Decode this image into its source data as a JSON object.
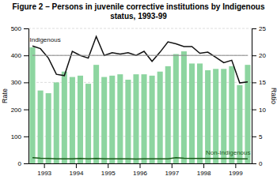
{
  "chart_data": {
    "type": "bar",
    "title": "Figure 2 – Persons in juvenile corrective institutions by Indigenous status, 1993-99",
    "categories": [
      null,
      "1993",
      null,
      null,
      null,
      "1994",
      null,
      null,
      null,
      "1995",
      null,
      null,
      null,
      "1996",
      null,
      null,
      null,
      "1997",
      null,
      null,
      null,
      "1998",
      null,
      null,
      null,
      "1999",
      null,
      null
    ],
    "series": [
      {
        "type": "bar",
        "color": "#8dd5a0",
        "values": [
          430,
          270,
          260,
          300,
          340,
          320,
          325,
          295,
          365,
          320,
          325,
          330,
          310,
          330,
          330,
          325,
          340,
          360,
          405,
          415,
          370,
          370,
          345,
          350,
          350,
          360,
          290,
          365
        ]
      },
      {
        "type": "line",
        "name": "Indigenous",
        "color": "#111111",
        "values": [
          435,
          425,
          390,
          330,
          325,
          415,
          400,
          390,
          470,
          400,
          410,
          405,
          410,
          400,
          415,
          378,
          412,
          450,
          443,
          433,
          433,
          408,
          412,
          393,
          373,
          382,
          298,
          302
        ]
      },
      {
        "type": "line",
        "name": "Non-Indigenous",
        "color": "#1a5c1a",
        "values": [
          21,
          19,
          18,
          17,
          17,
          17,
          18,
          17,
          18,
          17,
          17,
          17,
          17,
          16,
          17,
          17,
          17,
          17,
          21,
          19,
          18,
          18,
          18,
          18,
          18,
          18,
          17,
          17
        ]
      },
      {
        "type": "line",
        "axis": "y2",
        "color": "#888888",
        "values": [
          20,
          20,
          20,
          20,
          20,
          20,
          20,
          20,
          20,
          20,
          20,
          20,
          20,
          20,
          20,
          20,
          20,
          20,
          20,
          20,
          20,
          20,
          20,
          20,
          20,
          20,
          20,
          20
        ]
      }
    ],
    "ylabel": "Rate",
    "y2label": "Ratio",
    "ylim": [
      0,
      500
    ],
    "yticks": [
      0,
      100,
      200,
      300,
      400,
      500
    ],
    "y2lim": [
      0,
      25
    ],
    "y2ticks": [
      0,
      5,
      10,
      15,
      20,
      25
    ],
    "grid": true
  }
}
